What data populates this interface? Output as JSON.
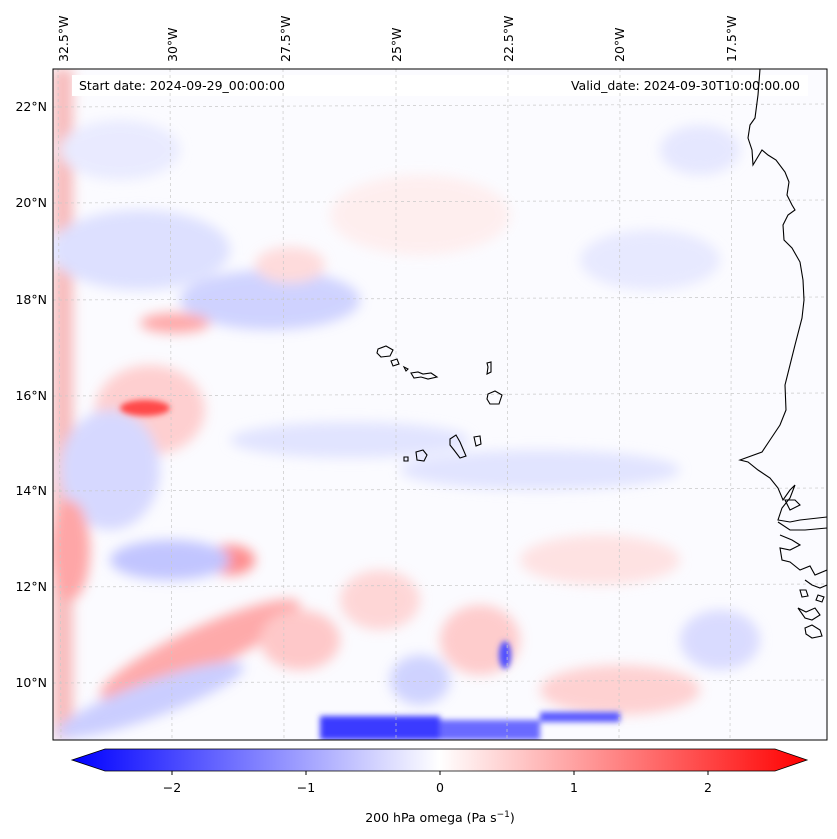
{
  "header": {
    "start_date": "Start date: 2024-09-29_00:00:00",
    "valid_date": "Valid_date: 2024-09-30T10:00:00.00"
  },
  "map": {
    "lon_ticks": [
      "32.5°W",
      "30°W",
      "27.5°W",
      "25°W",
      "22.5°W",
      "20°W",
      "17.5°W"
    ],
    "lat_ticks": [
      "22°N",
      "20°N",
      "18°N",
      "16°N",
      "14°N",
      "12°N",
      "10°N"
    ],
    "lon_values": [
      -32.5,
      -30,
      -27.5,
      -25,
      -22.5,
      -20,
      -17.5
    ],
    "lat_values": [
      22,
      20,
      18,
      16,
      14,
      12,
      10
    ],
    "extent": {
      "lon_min": -33.0,
      "lon_max": -16.0,
      "lat_min": 9.0,
      "lat_max": 22.7
    },
    "gridlines": true,
    "coastline_color": "#000000"
  },
  "colorbar": {
    "label_main": "200 hPa omega (Pa s",
    "label_sup": "−1",
    "label_end": ")",
    "ticks": [
      "−2",
      "−1",
      "0",
      "1",
      "2"
    ],
    "tick_values": [
      -2,
      -1,
      0,
      1,
      2
    ],
    "vmin": -2.5,
    "vmax": 2.5,
    "colormap": "bwr",
    "extend": "both",
    "low_color": "#0000ff",
    "mid_color": "#ffffff",
    "high_color": "#ff0000"
  }
}
